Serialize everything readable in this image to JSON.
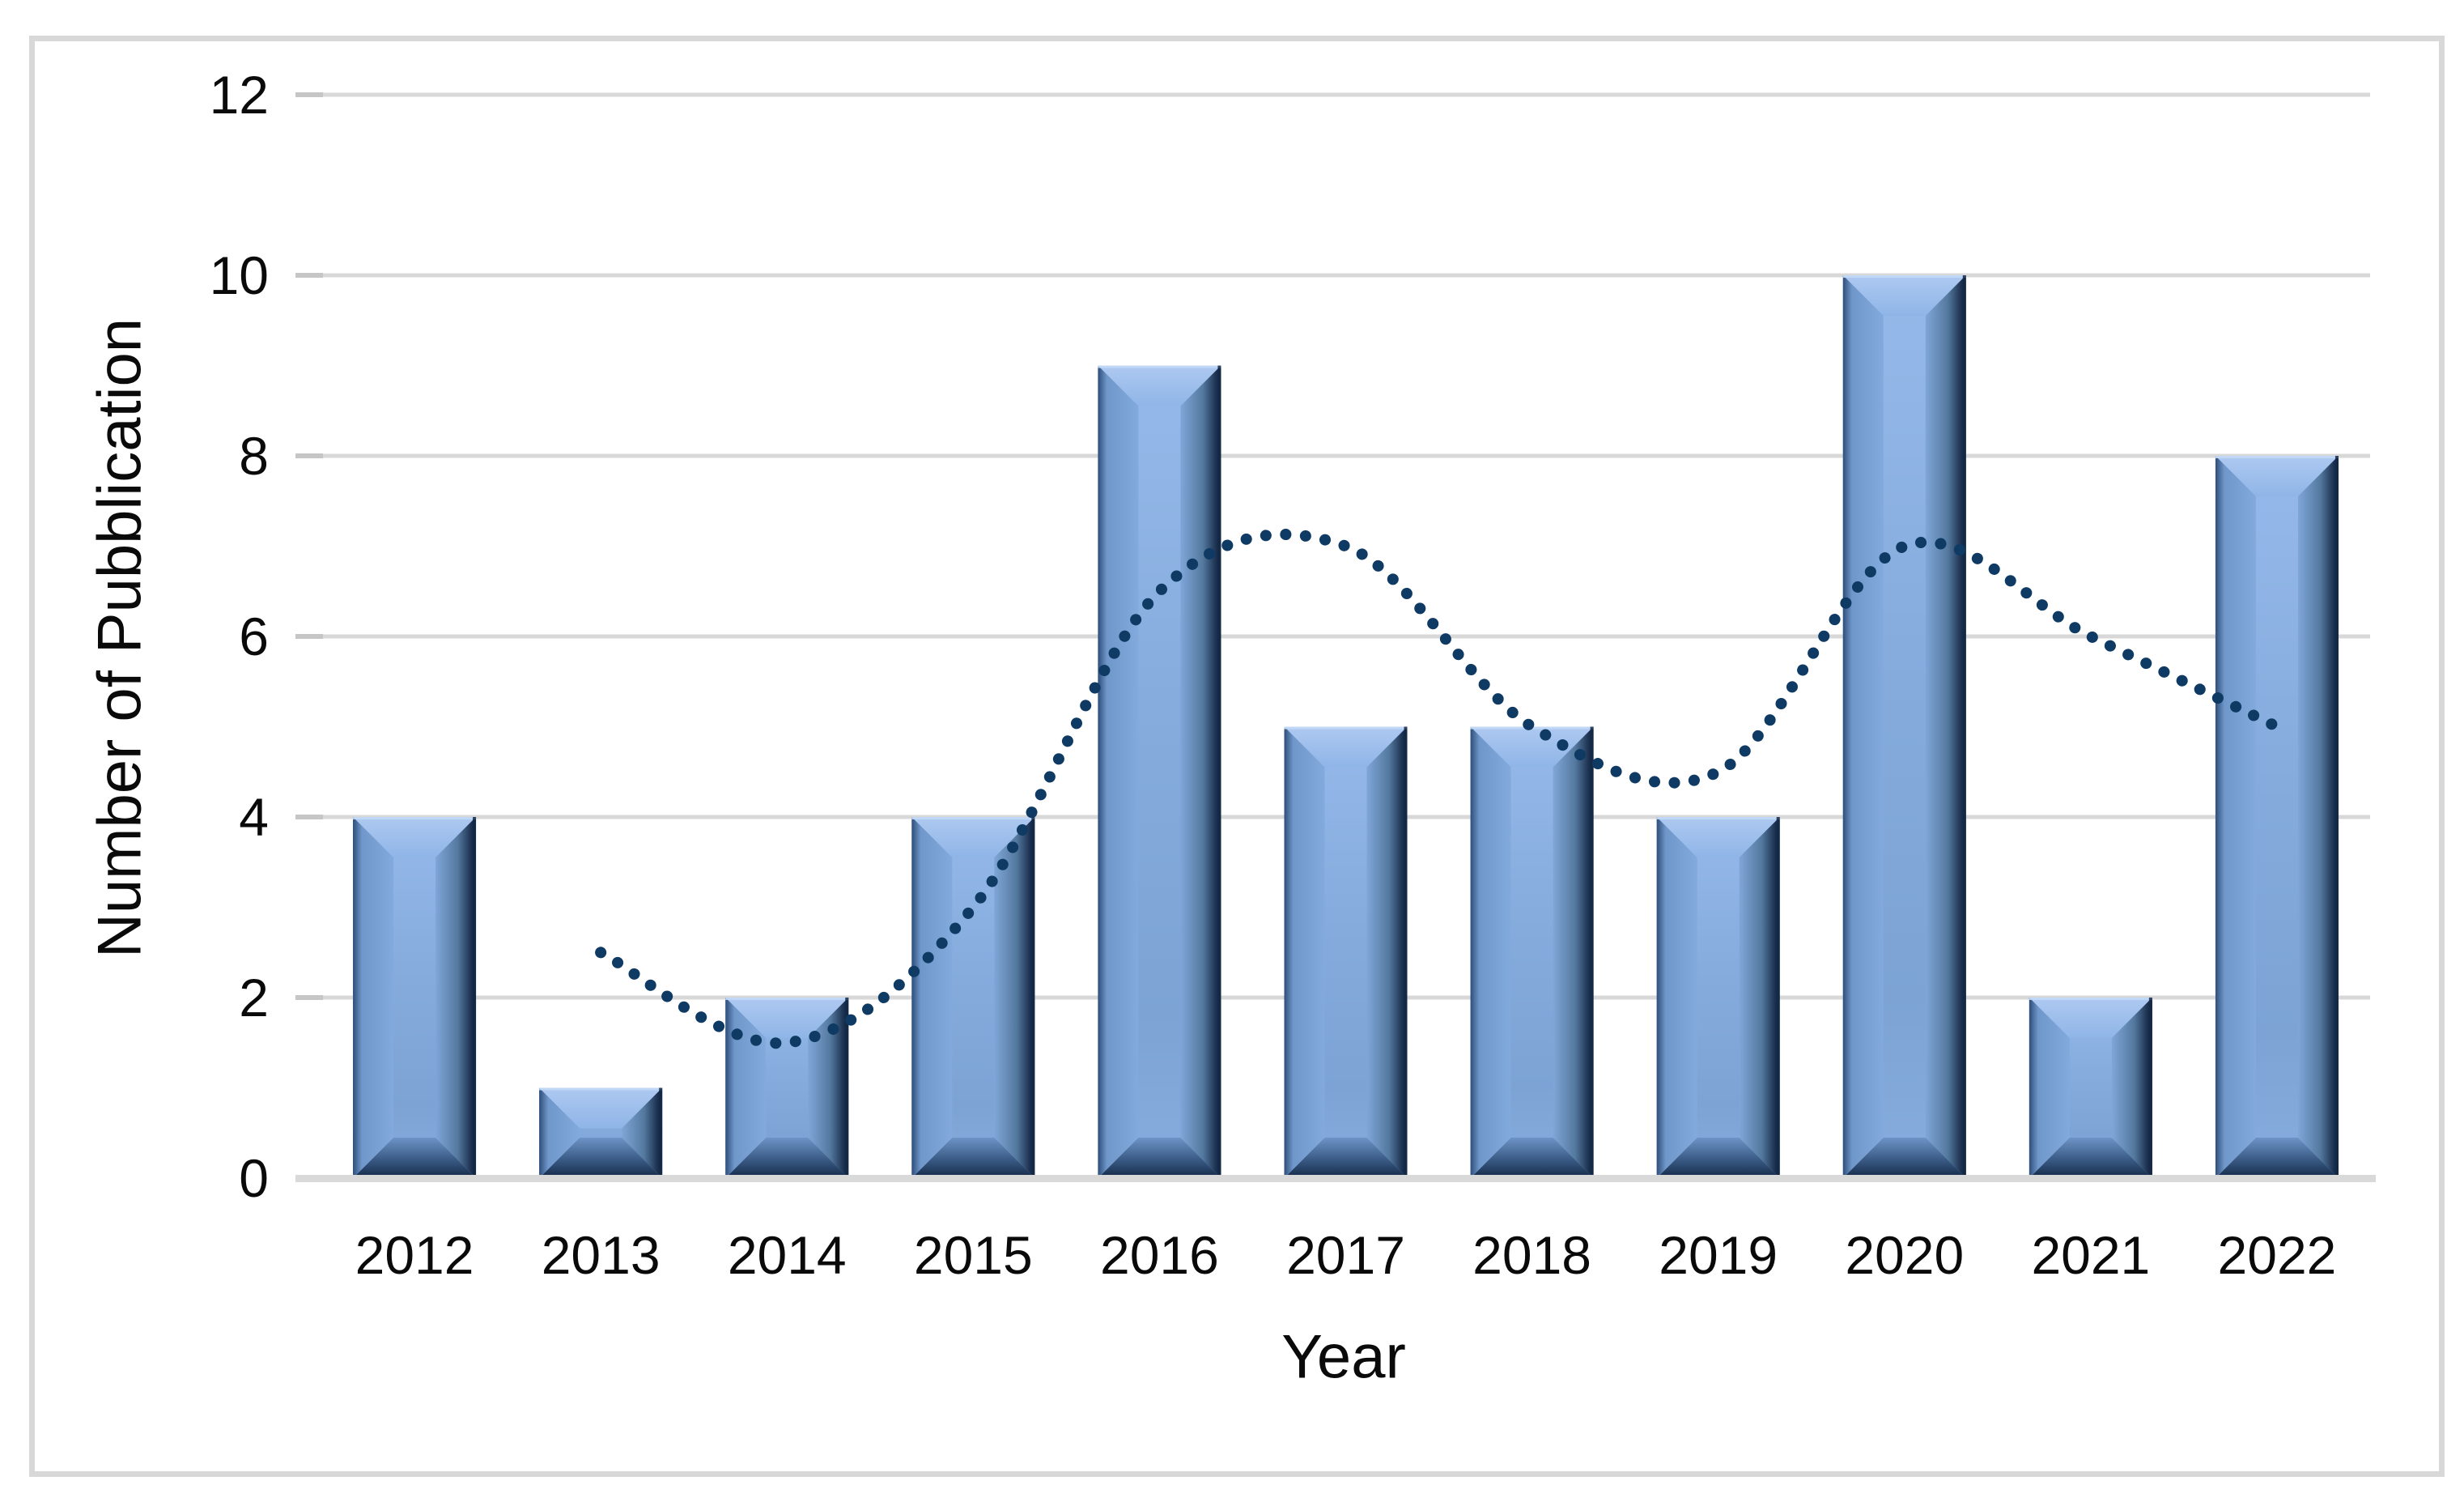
{
  "chart_data": {
    "type": "bar",
    "title": "",
    "categories": [
      "2012",
      "2013",
      "2014",
      "2015",
      "2016",
      "2017",
      "2018",
      "2019",
      "2020",
      "2021",
      "2022"
    ],
    "series": [
      {
        "name": "publications-per-year",
        "type": "bar",
        "values": [
          4,
          1,
          2,
          4,
          9,
          5,
          5,
          4,
          10,
          2,
          8
        ]
      },
      {
        "name": "moving-average-trendline",
        "type": "dotted-line",
        "x_start_category": "2013",
        "values": [
          2.5,
          1.5,
          3,
          6.5,
          7,
          5,
          4.5,
          7,
          6,
          5
        ]
      }
    ],
    "xlabel": "Year",
    "ylabel": "Number of Pubblication",
    "ylim": [
      0,
      12
    ],
    "yticks": [
      0,
      2,
      4,
      6,
      8,
      10,
      12
    ],
    "grid": true,
    "legend_position": "none",
    "colors": {
      "bar_fill": "#86ADDE",
      "bar_bevel_light": "#AEC9F1",
      "bar_face_left": "#6F97CA",
      "bar_face_right_dark": "#1C3150",
      "bar_edge_dark": "#132946",
      "trendline": "#0E3A63",
      "gridline": "#D8D8D8",
      "axis_line": "#D9D9D9",
      "text": "#0A0A0A",
      "frame_border": "#D8D8D8",
      "background": "#FFFFFF"
    }
  }
}
